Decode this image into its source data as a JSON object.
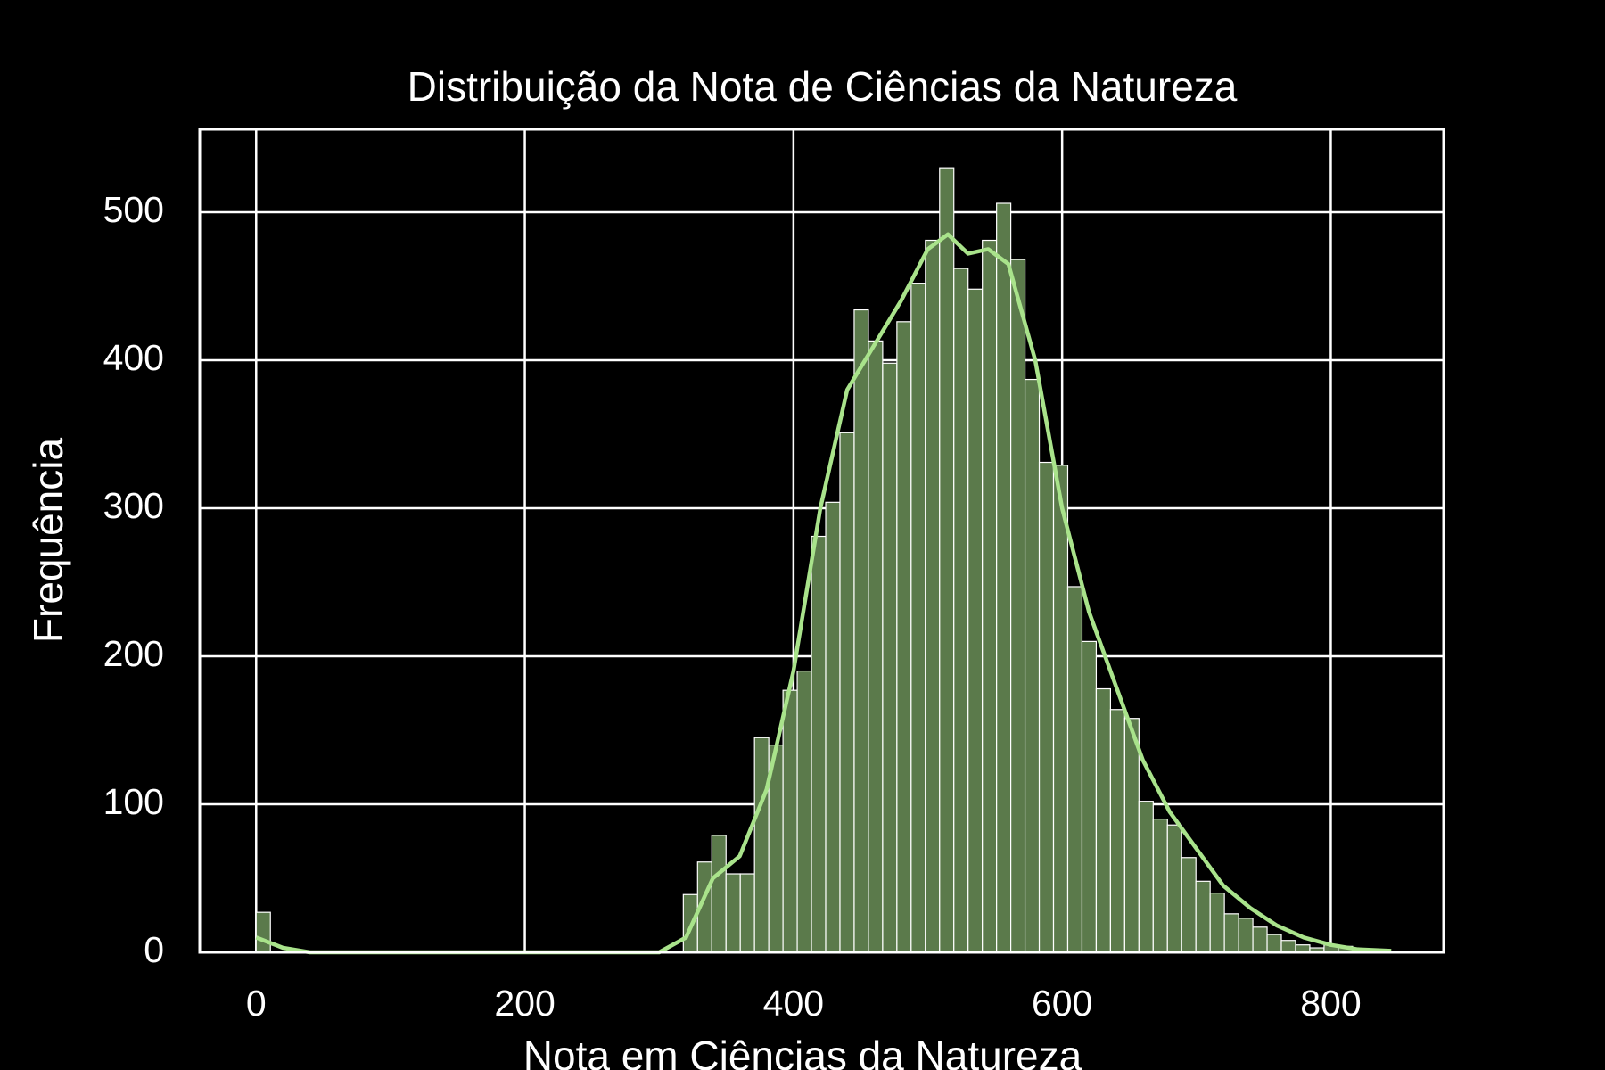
{
  "chart_data": {
    "type": "histogram",
    "title": "Distribuição da Nota de Ciências da Natureza",
    "xlabel": "Nota em Ciências da Natureza",
    "ylabel": "Frequência",
    "color": "#5b7a4b",
    "edgecolor": "#ffffff",
    "bins": [
      0,
      10.6,
      21.2,
      31.8,
      42.4,
      53,
      63.6,
      74.2,
      84.8,
      95.4,
      106,
      116.6,
      127.2,
      137.8,
      148.4,
      159,
      169.6,
      180.2,
      190.8,
      201.4,
      212,
      222.6,
      233.2,
      243.8,
      254.4,
      265,
      275.6,
      286.2,
      296.8,
      307.4,
      318,
      328.6,
      339.2,
      349.8,
      360.4,
      371,
      381.6,
      392.2,
      402.8,
      413.4,
      424,
      434.6,
      445.2,
      455.8,
      466.4,
      477,
      487.6,
      498.2,
      508.8,
      519.4,
      530,
      540.6,
      551.2,
      561.8,
      572.4,
      583,
      593.6,
      604.2,
      614.8,
      625.4,
      636,
      646.6,
      657.2,
      667.8,
      678.4,
      689,
      699.6,
      710.2,
      720.8,
      731.4,
      742,
      752.6,
      763.2,
      773.8,
      784.4,
      795,
      805.6,
      816.2
    ],
    "counts": [
      27,
      0,
      0,
      0,
      0,
      0,
      0,
      0,
      0,
      0,
      0,
      0,
      0,
      0,
      0,
      0,
      0,
      0,
      0,
      0,
      0,
      0,
      0,
      0,
      0,
      0,
      0,
      0,
      0,
      0,
      39,
      61,
      79,
      53,
      53,
      145,
      140,
      177,
      190,
      281,
      304,
      351,
      434,
      413,
      398,
      426,
      452,
      481,
      530,
      462,
      448,
      481,
      506,
      468,
      387,
      331,
      329,
      247,
      210,
      178,
      164,
      158,
      102,
      90,
      86,
      64,
      48,
      40,
      26,
      23,
      17,
      12,
      8,
      5,
      3,
      5,
      4
    ],
    "kde": {
      "color": "#a9e38b",
      "x": [
        0,
        20,
        40,
        300,
        320,
        340,
        360,
        380,
        400,
        420,
        440,
        460,
        480,
        500,
        515,
        530,
        545,
        560,
        580,
        600,
        620,
        640,
        660,
        680,
        700,
        720,
        740,
        760,
        780,
        800,
        820,
        845
      ],
      "y": [
        10,
        3,
        0,
        0,
        10,
        50,
        65,
        110,
        190,
        300,
        380,
        410,
        440,
        475,
        485,
        472,
        475,
        465,
        400,
        300,
        230,
        180,
        130,
        95,
        70,
        45,
        30,
        18,
        10,
        5,
        2,
        1
      ]
    },
    "xlim": [
      -42,
      884
    ],
    "ylim": [
      0,
      556
    ],
    "xticks": [
      0,
      200,
      400,
      600,
      800
    ],
    "yticks": [
      0,
      100,
      200,
      300,
      400,
      500
    ],
    "grid": true
  }
}
